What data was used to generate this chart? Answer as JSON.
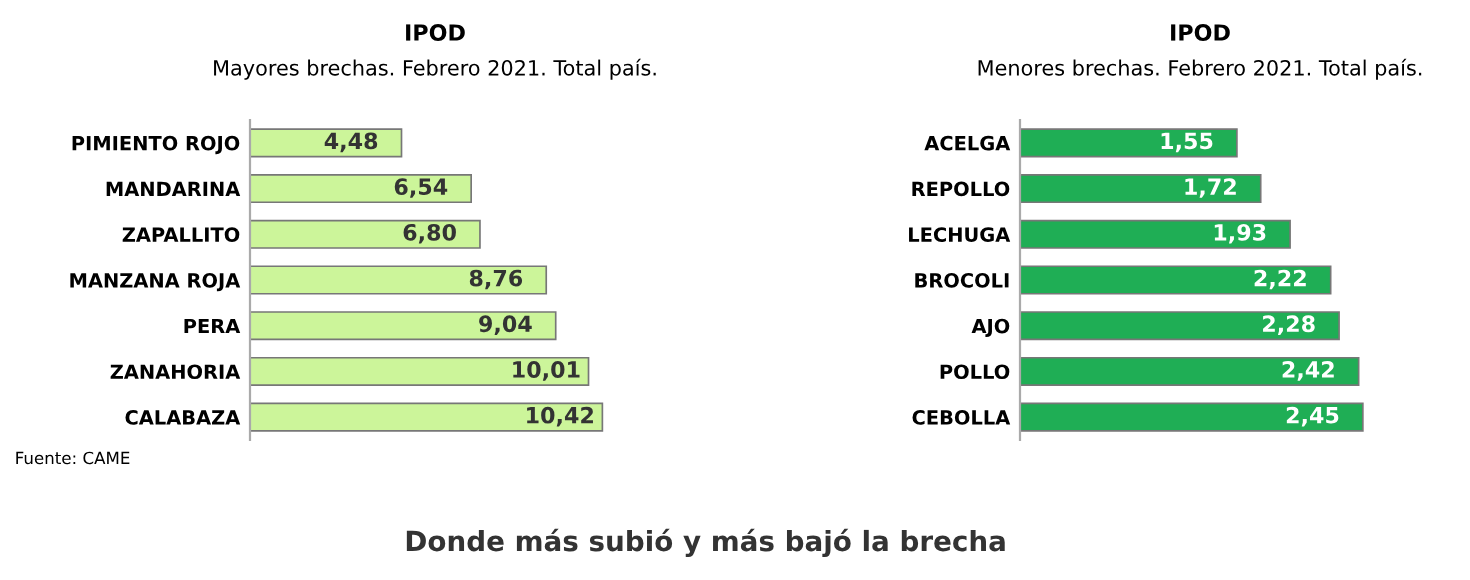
{
  "chart_data": [
    {
      "type": "bar",
      "orientation": "horizontal",
      "title": "IPOD",
      "subtitle": "Mayores brechas. Febrero 2021. Total país.",
      "categories": [
        "PIMIENTO ROJO",
        "MANDARINA",
        "ZAPALLITO",
        "MANZANA ROJA",
        "PERA",
        "ZANAHORIA",
        "CALABAZA"
      ],
      "values": [
        4.48,
        6.54,
        6.8,
        8.76,
        9.04,
        10.01,
        10.42
      ],
      "value_labels": [
        "4,48",
        "6,54",
        "6,80",
        "8,76",
        "9,04",
        "10,01",
        "10,42"
      ],
      "color": "#ccf59a",
      "tick_labels": "y",
      "annotations": [
        "Fuente: CAME",
        "Donde más subió y más bajó la brecha"
      ]
    },
    {
      "type": "bar",
      "orientation": "horizontal",
      "title": "IPOD",
      "subtitle": "Menores brechas. Febrero 2021. Total país.",
      "categories": [
        "ACELGA",
        "REPOLLO",
        "LECHUGA",
        "BROCOLI",
        "AJO",
        "POLLO",
        "CEBOLLA"
      ],
      "values": [
        1.55,
        1.72,
        1.93,
        2.22,
        2.28,
        2.42,
        2.45
      ],
      "value_labels": [
        "1,55",
        "1,72",
        "1,93",
        "2,22",
        "2,28",
        "2,42",
        "2,45"
      ],
      "color": "#1fae55",
      "tick_labels": "y"
    }
  ]
}
